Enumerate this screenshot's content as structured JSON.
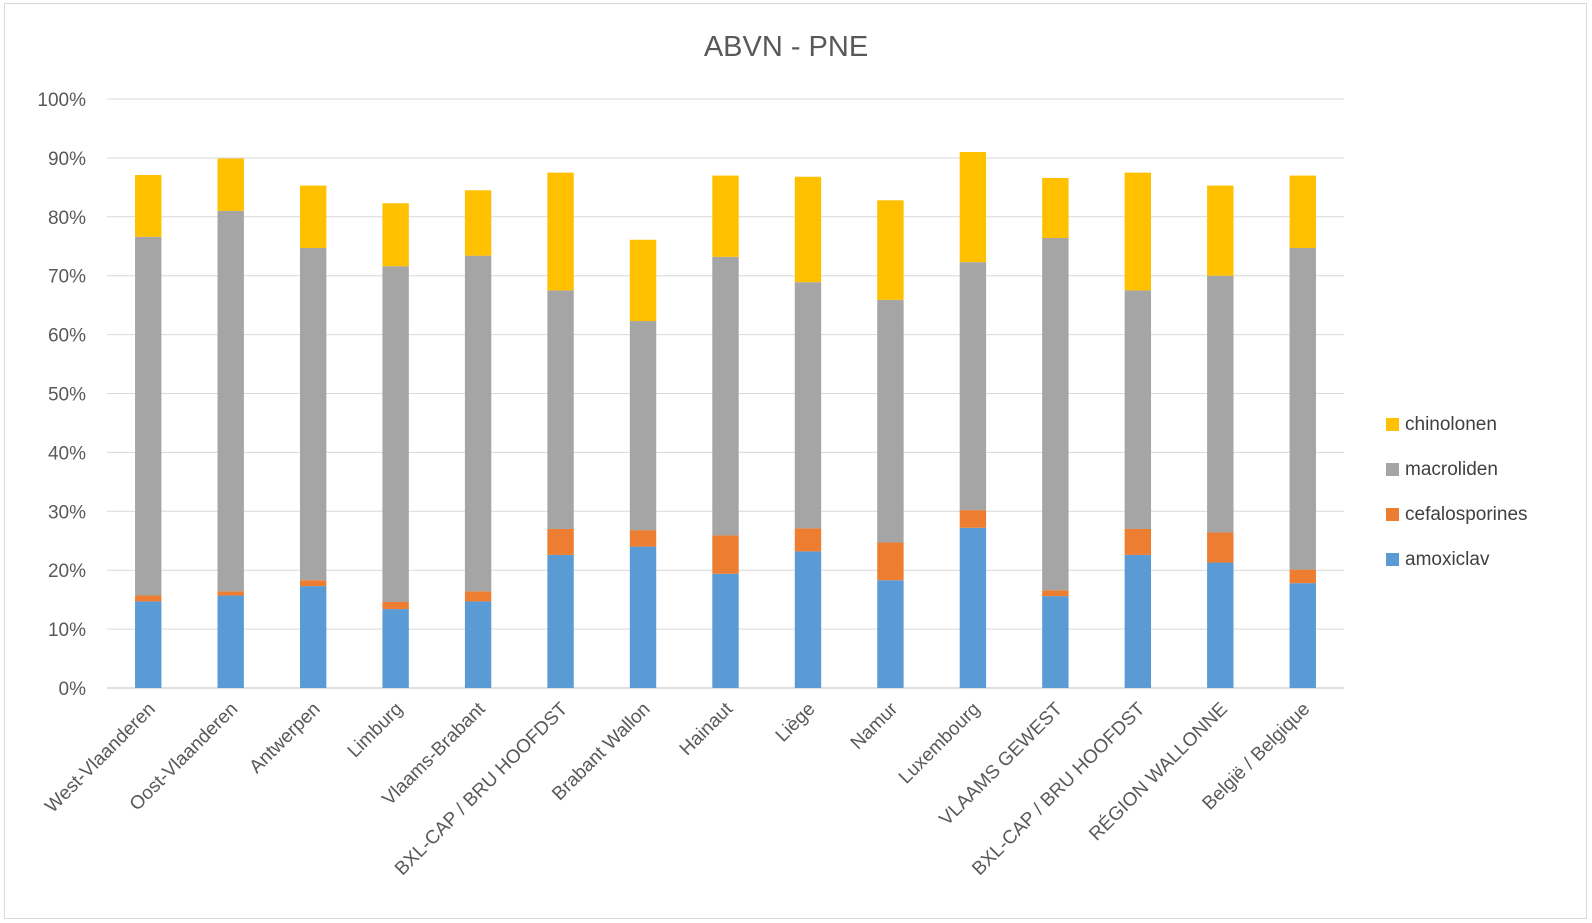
{
  "chart_data": {
    "type": "bar",
    "stacked": true,
    "title": "ABVN - PNE",
    "xlabel": "",
    "ylabel": "",
    "ylim": [
      0,
      100
    ],
    "y_ticks": [
      "0%",
      "10%",
      "20%",
      "30%",
      "40%",
      "50%",
      "60%",
      "70%",
      "80%",
      "90%",
      "100%"
    ],
    "grid": true,
    "legend_position": "right",
    "categories": [
      "West-Vlaanderen",
      "Oost-Vlaanderen",
      "Antwerpen",
      "Limburg",
      "Vlaams-Brabant",
      "BXL-CAP / BRU HOOFDST",
      "Brabant Wallon",
      "Hainaut",
      "Liège",
      "Namur",
      "Luxembourg",
      "VLAAMS GEWEST",
      "BXL-CAP / BRU HOOFDST",
      "RÉGION WALLONNE",
      "België / Belgique"
    ],
    "series": [
      {
        "name": "amoxiclav",
        "color": "#5b9bd5",
        "values": [
          14.7,
          15.7,
          17.3,
          13.4,
          14.7,
          22.6,
          24.0,
          19.4,
          23.2,
          18.3,
          27.2,
          15.6,
          22.6,
          21.3,
          17.8
        ]
      },
      {
        "name": "cefalosporines",
        "color": "#ed7d31",
        "values": [
          1.0,
          0.7,
          1.0,
          1.2,
          1.7,
          4.4,
          2.8,
          6.5,
          3.9,
          6.4,
          3.0,
          1.0,
          4.4,
          5.1,
          2.3
        ]
      },
      {
        "name": "macroliden",
        "color": "#a5a5a5",
        "values": [
          60.9,
          64.6,
          56.4,
          57.0,
          57.0,
          40.5,
          35.5,
          47.3,
          41.8,
          41.2,
          42.1,
          59.8,
          40.5,
          43.6,
          54.6
        ]
      },
      {
        "name": "chinolonen",
        "color": "#ffc000",
        "values": [
          10.5,
          8.9,
          10.6,
          10.7,
          11.1,
          20.0,
          13.8,
          13.8,
          17.9,
          16.9,
          18.7,
          10.2,
          20.0,
          15.3,
          12.3
        ]
      }
    ]
  }
}
